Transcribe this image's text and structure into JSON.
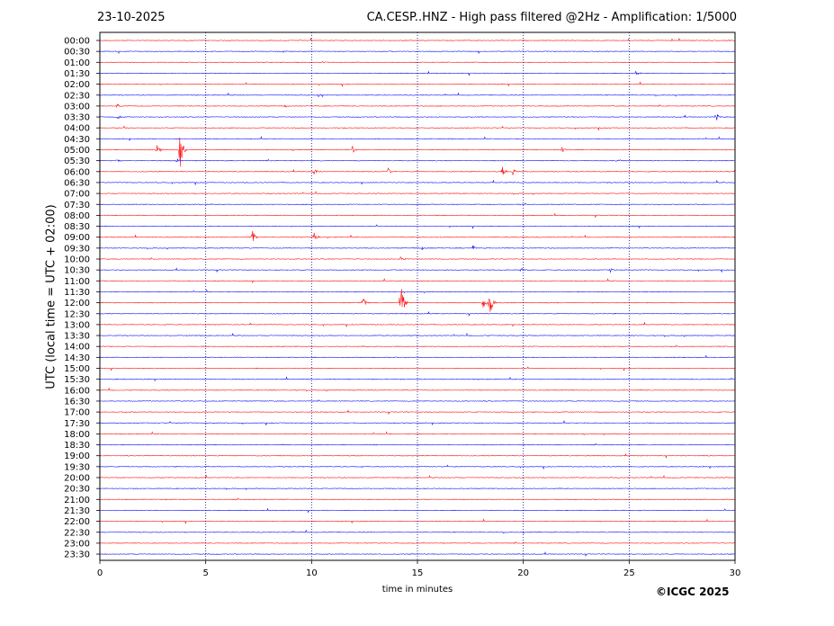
{
  "header": {
    "date": "23-10-2025",
    "title": "CA.CESP..HNZ - High pass filtered @2Hz - Amplification: 1/5000"
  },
  "copyright": "©ICGC 2025",
  "colors": {
    "trace_red": "#ff0000",
    "trace_blue": "#0000ff",
    "grid": "#000080",
    "axis": "#000000"
  },
  "chart_data": {
    "type": "line",
    "title": "CA.CESP..HNZ - High pass filtered @2Hz - Amplification: 1/5000",
    "xlabel": "time in minutes",
    "ylabel": "UTC (local time = UTC + 02:00)",
    "xlim": [
      0,
      30
    ],
    "x_ticks": [
      "0",
      "5",
      "10",
      "15",
      "20",
      "25",
      "30"
    ],
    "x_tick_values": [
      0,
      5,
      10,
      15,
      20,
      25,
      30
    ],
    "vertical_grid_minutes": [
      5,
      10,
      15,
      20,
      25
    ],
    "grid": "dotted vertical",
    "row_labels": [
      "00:00",
      "00:30",
      "01:00",
      "01:30",
      "02:00",
      "02:30",
      "03:00",
      "03:30",
      "04:00",
      "04:30",
      "05:00",
      "05:30",
      "06:00",
      "06:30",
      "07:00",
      "07:30",
      "08:00",
      "08:30",
      "09:00",
      "09:30",
      "10:00",
      "10:30",
      "11:00",
      "11:30",
      "12:00",
      "12:30",
      "13:00",
      "13:30",
      "14:00",
      "14:30",
      "15:00",
      "15:30",
      "16:00",
      "16:30",
      "17:00",
      "17:30",
      "18:00",
      "18:30",
      "19:00",
      "19:30",
      "20:00",
      "20:30",
      "21:00",
      "21:30",
      "22:00",
      "22:30",
      "23:00",
      "23:30"
    ],
    "row_color_pattern": [
      "red",
      "blue"
    ],
    "events": [
      {
        "row": "01:30",
        "minute": 25.3,
        "amp": 0.25
      },
      {
        "row": "02:30",
        "minute": 10.3,
        "amp": 0.2
      },
      {
        "row": "03:00",
        "minute": 0.8,
        "amp": 0.25
      },
      {
        "row": "03:00",
        "minute": 8.7,
        "amp": 0.2
      },
      {
        "row": "03:30",
        "minute": 0.8,
        "amp": 0.3
      },
      {
        "row": "03:30",
        "minute": 29.1,
        "amp": 0.45
      },
      {
        "row": "05:00",
        "minute": 2.7,
        "amp": 0.6
      },
      {
        "row": "05:00",
        "minute": 3.75,
        "amp": 2.6
      },
      {
        "row": "05:00",
        "minute": 11.9,
        "amp": 0.6
      },
      {
        "row": "05:00",
        "minute": 21.8,
        "amp": 0.45
      },
      {
        "row": "05:30",
        "minute": 0.8,
        "amp": 0.3
      },
      {
        "row": "05:30",
        "minute": 3.6,
        "amp": 0.4
      },
      {
        "row": "05:30",
        "minute": 24.4,
        "amp": 0.3
      },
      {
        "row": "06:00",
        "minute": 10.1,
        "amp": 0.45
      },
      {
        "row": "06:00",
        "minute": 13.6,
        "amp": 0.5
      },
      {
        "row": "06:00",
        "minute": 19.0,
        "amp": 0.6
      },
      {
        "row": "06:00",
        "minute": 19.5,
        "amp": 0.35
      },
      {
        "row": "09:00",
        "minute": 7.2,
        "amp": 0.75
      },
      {
        "row": "09:00",
        "minute": 10.1,
        "amp": 0.5
      },
      {
        "row": "09:30",
        "minute": 15.2,
        "amp": 0.25
      },
      {
        "row": "09:30",
        "minute": 17.6,
        "amp": 0.3
      },
      {
        "row": "10:00",
        "minute": 14.2,
        "amp": 0.3
      },
      {
        "row": "10:30",
        "minute": 19.9,
        "amp": 0.3
      },
      {
        "row": "10:30",
        "minute": 24.1,
        "amp": 0.25
      },
      {
        "row": "12:00",
        "minute": 12.4,
        "amp": 0.75
      },
      {
        "row": "12:00",
        "minute": 14.2,
        "amp": 2.4
      },
      {
        "row": "12:00",
        "minute": 18.1,
        "amp": 0.6
      },
      {
        "row": "12:00",
        "minute": 18.4,
        "amp": 1.6
      }
    ]
  }
}
